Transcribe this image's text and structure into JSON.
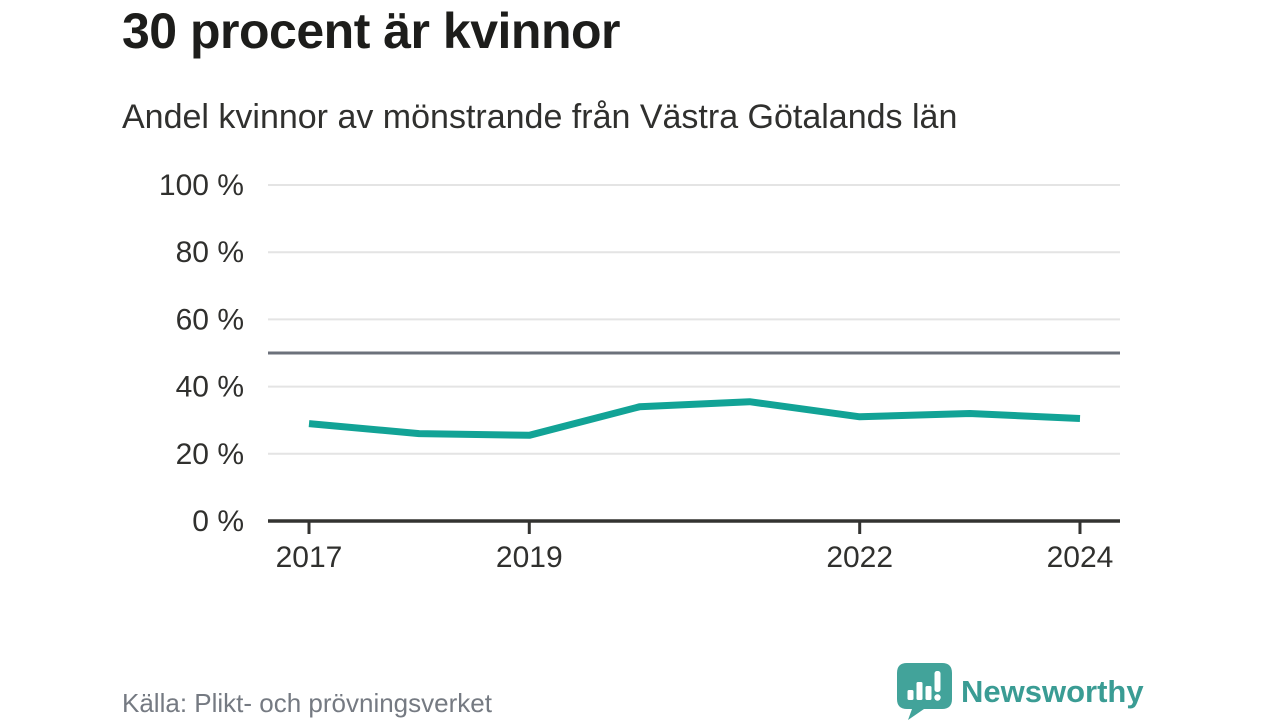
{
  "chart_data": {
    "type": "line",
    "title": "30 procent är kvinnor",
    "subtitle": "Andel kvinnor av mönstrande från Västra Götalands län",
    "x": [
      2017,
      2018,
      2019,
      2020,
      2021,
      2022,
      2023,
      2024
    ],
    "values": [
      29,
      26,
      25.5,
      34,
      35.5,
      31,
      32,
      30.5
    ],
    "unit": "%",
    "ylim": [
      0,
      100
    ],
    "y_ticks": [
      {
        "value": 100,
        "label": "100 %"
      },
      {
        "value": 80,
        "label": "80 %"
      },
      {
        "value": 60,
        "label": "60 %"
      },
      {
        "value": 40,
        "label": "40 %"
      },
      {
        "value": 20,
        "label": "20 %"
      },
      {
        "value": 0,
        "label": "0 %"
      }
    ],
    "x_ticks": [
      {
        "value": 2017,
        "label": "2017"
      },
      {
        "value": 2019,
        "label": "2019"
      },
      {
        "value": 2022,
        "label": "2022"
      },
      {
        "value": 2024,
        "label": "2024"
      }
    ],
    "reference_line_value": 50,
    "grid": true,
    "legend": "none"
  },
  "footer": {
    "source": "Källa: Plikt- och prövningsverket",
    "logo_text": "Newsworthy",
    "logo_icon": "newsworthy-speech-bubble-bar-chart-icon"
  },
  "colors": {
    "line": "#12a396",
    "grid": "#e4e4e4",
    "reference": "#6c717b",
    "axis": "#333331",
    "text": "#30302e",
    "muted": "#757a82",
    "brand": "#3a9c94"
  }
}
